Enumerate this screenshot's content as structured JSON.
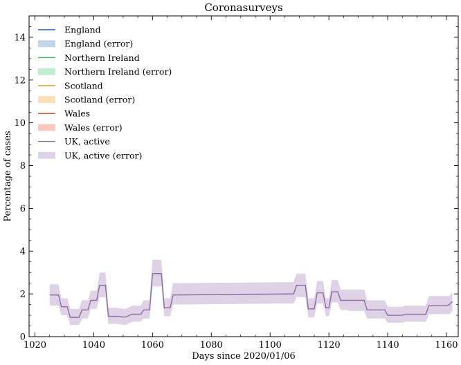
{
  "chart_data": {
    "type": "line",
    "title": "Coronasurveys",
    "xlabel": "Days since 2020/01/06",
    "ylabel": "Percentage of cases",
    "xlim": [
      1018,
      1164
    ],
    "ylim": [
      0,
      15
    ],
    "xticks": [
      1020,
      1040,
      1060,
      1080,
      1100,
      1120,
      1140,
      1160
    ],
    "yticks": [
      0,
      2,
      4,
      6,
      8,
      10,
      12,
      14
    ],
    "grid": false,
    "legend_position": "top-left",
    "legend": [
      {
        "label": "England",
        "kind": "line",
        "color": "#1f5fa8"
      },
      {
        "label": "England (error)",
        "kind": "patch",
        "color": "#c3d4ea"
      },
      {
        "label": "Northern Ireland",
        "kind": "line",
        "color": "#2bb34a"
      },
      {
        "label": "Northern Ireland (error)",
        "kind": "patch",
        "color": "#c0ecd0"
      },
      {
        "label": "Scotland",
        "kind": "line",
        "color": "#f39c2a"
      },
      {
        "label": "Scotland (error)",
        "kind": "patch",
        "color": "#fde0b8"
      },
      {
        "label": "Wales",
        "kind": "line",
        "color": "#d23d22"
      },
      {
        "label": "Wales (error)",
        "kind": "patch",
        "color": "#f9c7bf"
      },
      {
        "label": "UK, active",
        "kind": "line",
        "color": "#8c6aa2"
      },
      {
        "label": "UK, active (error)",
        "kind": "patch",
        "color": "#dfd2e6"
      }
    ],
    "series": [
      {
        "name": "UK, active",
        "color": "#8c6aa2",
        "band_color": "#dfd2e6",
        "x": [
          1025,
          1028,
          1029,
          1031,
          1032,
          1035,
          1036,
          1038,
          1039,
          1041,
          1042,
          1044,
          1045,
          1047,
          1048,
          1050,
          1051,
          1053,
          1054,
          1056,
          1057,
          1059,
          1060,
          1063,
          1064,
          1066,
          1067,
          1108,
          1109,
          1112,
          1113,
          1115,
          1116,
          1118,
          1119,
          1120,
          1121,
          1123,
          1124,
          1126,
          1127,
          1132,
          1133,
          1139,
          1140,
          1145,
          1146,
          1153,
          1154,
          1160,
          1161,
          1162
        ],
        "y": [
          1.95,
          1.95,
          1.4,
          1.4,
          0.9,
          0.9,
          1.25,
          1.25,
          1.7,
          1.7,
          2.4,
          2.4,
          0.95,
          0.95,
          0.95,
          0.92,
          0.92,
          1.05,
          1.05,
          1.05,
          1.25,
          1.25,
          2.95,
          2.95,
          1.35,
          1.35,
          1.95,
          2.0,
          2.4,
          2.4,
          1.3,
          1.3,
          2.05,
          2.05,
          1.35,
          1.35,
          2.1,
          2.1,
          1.7,
          1.7,
          1.7,
          1.7,
          1.25,
          1.25,
          1.0,
          1.0,
          1.05,
          1.05,
          1.45,
          1.45,
          1.5,
          1.65
        ],
        "lower": [
          1.45,
          1.45,
          1.0,
          1.0,
          0.55,
          0.55,
          0.85,
          0.85,
          1.3,
          1.3,
          1.85,
          1.85,
          0.6,
          0.6,
          0.6,
          0.55,
          0.55,
          0.7,
          0.7,
          0.7,
          0.85,
          0.85,
          2.35,
          2.35,
          0.95,
          0.95,
          1.5,
          1.55,
          1.85,
          1.85,
          0.9,
          0.9,
          1.55,
          1.55,
          0.95,
          0.95,
          1.6,
          1.6,
          1.25,
          1.25,
          1.2,
          1.2,
          0.85,
          0.85,
          0.65,
          0.65,
          0.7,
          0.7,
          1.05,
          1.05,
          1.05,
          1.2
        ],
        "upper": [
          2.45,
          2.45,
          1.8,
          1.8,
          1.3,
          1.3,
          1.7,
          1.7,
          2.15,
          2.15,
          3.0,
          3.0,
          1.35,
          1.35,
          1.35,
          1.3,
          1.3,
          1.45,
          1.45,
          1.45,
          1.7,
          1.7,
          3.6,
          3.6,
          1.8,
          1.8,
          2.5,
          2.55,
          2.95,
          2.95,
          1.8,
          1.8,
          2.6,
          2.6,
          1.8,
          1.8,
          2.65,
          2.65,
          2.2,
          2.2,
          2.2,
          2.2,
          1.7,
          1.7,
          1.4,
          1.4,
          1.45,
          1.45,
          1.9,
          1.9,
          1.9,
          2.1
        ]
      }
    ]
  }
}
